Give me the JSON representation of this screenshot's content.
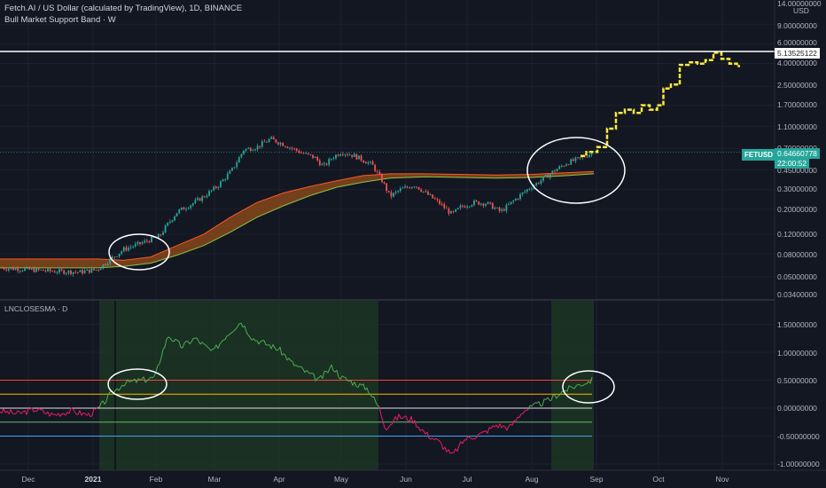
{
  "header": {
    "title": "Fetch.AI / US Dollar (calculated by TradingView), 1D, BINANCE",
    "indicator": "Bull Market Support Band · W"
  },
  "lower_pane": {
    "title": "LNCLOSESMA · D"
  },
  "price_axis": {
    "currency": "USD",
    "ticks": [
      "14.00000000",
      "9.00000000",
      "6.00000000",
      "4.00000000",
      "2.50000000",
      "1.70000000",
      "1.10000000",
      "0.70000000",
      "0.45000000",
      "0.30000000",
      "0.20000000",
      "0.12000000",
      "0.08000000",
      "0.05000000",
      "0.03400000"
    ]
  },
  "osc_axis": {
    "ticks": [
      "1.50000000",
      "1.00000000",
      "0.50000000",
      "0.00000000",
      "-0.50000000",
      "-1.00000000"
    ]
  },
  "time_axis": {
    "ticks": [
      "Dec",
      "2021",
      "Feb",
      "Mar",
      "Apr",
      "May",
      "Jun",
      "Jul",
      "Aug",
      "Sep",
      "Oct",
      "Nov"
    ]
  },
  "price_labels": {
    "resistance": "5.13525122",
    "symbol": "FETUSD",
    "last_price": "0.64660778",
    "countdown": "22:00:52"
  },
  "colors": {
    "background": "#131722",
    "bull_candle": "#26a69a",
    "bear_candle": "#ef5350",
    "projection": "#ffeb3b",
    "band_fill": "#8d4a1a",
    "band_line_upper": "#ff5722",
    "band_line_lower": "#8bc34a",
    "osc_line_above": "#4caf50",
    "osc_line_below": "#e91e63",
    "zone_fill": "#1e3a24"
  },
  "chart_data": {
    "type": "line",
    "x": [
      "Dec",
      "2021",
      "Feb",
      "Mar",
      "Apr",
      "May",
      "Jun",
      "Jul",
      "Aug",
      "Sep",
      "Oct",
      "Nov"
    ],
    "series": [
      {
        "values": [
          0.06,
          0.05,
          0.12,
          0.3,
          0.9,
          0.55,
          0.33,
          0.2,
          0.35,
          0.65,
          2.0,
          5.0
        ]
      },
      {
        "values": [
          0.06,
          0.065,
          0.07,
          0.15,
          0.28,
          0.36,
          0.4,
          0.4,
          0.41,
          0.43,
          null,
          null
        ]
      },
      {
        "values": [
          -0.1,
          0.0,
          0.5,
          1.2,
          1.4,
          1.0,
          -0.2,
          -0.8,
          -0.3,
          0.5,
          null,
          null
        ]
      }
    ],
    "hlines": [
      5.13525122,
      0.5,
      0.25,
      0.0,
      -0.25,
      -0.5
    ]
  }
}
